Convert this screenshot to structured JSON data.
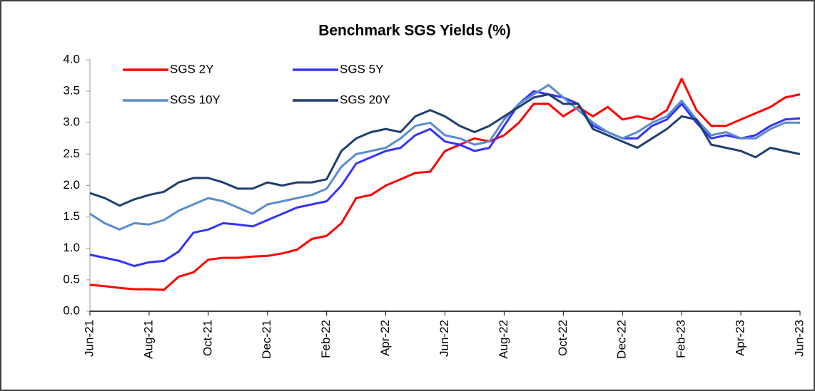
{
  "chart_data": {
    "type": "line",
    "title": "Benchmark SGS Yields (%)",
    "categories": [
      "Jun-21",
      null,
      null,
      null,
      "Aug-21",
      null,
      null,
      null,
      "Oct-21",
      null,
      null,
      null,
      "Dec-21",
      null,
      null,
      null,
      "Feb-22",
      null,
      null,
      null,
      "Apr-22",
      null,
      null,
      null,
      "Jun-22",
      null,
      null,
      null,
      "Aug-22",
      null,
      null,
      null,
      "Oct-22",
      null,
      null,
      null,
      "Dec-22",
      null,
      null,
      null,
      "Feb-23",
      null,
      null,
      null,
      "Apr-23",
      null,
      null,
      null,
      "Jun-23"
    ],
    "series": [
      {
        "name": "SGS 2Y",
        "color": "#ff0000",
        "values": [
          0.42,
          0.4,
          0.37,
          0.35,
          0.35,
          0.34,
          0.55,
          0.62,
          0.82,
          0.85,
          0.85,
          0.87,
          0.88,
          0.92,
          0.98,
          1.15,
          1.2,
          1.4,
          1.8,
          1.85,
          2.0,
          2.1,
          2.2,
          2.22,
          2.55,
          2.65,
          2.75,
          2.7,
          2.8,
          3.0,
          3.3,
          3.3,
          3.1,
          3.25,
          3.1,
          3.25,
          3.05,
          3.1,
          3.05,
          3.2,
          3.7,
          3.2,
          2.95,
          2.95,
          3.05,
          3.15,
          3.25,
          3.4,
          3.45
        ]
      },
      {
        "name": "SGS 5Y",
        "color": "#3333ff",
        "values": [
          0.9,
          0.85,
          0.8,
          0.72,
          0.78,
          0.8,
          0.95,
          1.25,
          1.3,
          1.4,
          1.38,
          1.35,
          1.45,
          1.55,
          1.65,
          1.7,
          1.75,
          2.0,
          2.35,
          2.45,
          2.55,
          2.6,
          2.8,
          2.9,
          2.7,
          2.65,
          2.55,
          2.6,
          2.95,
          3.3,
          3.5,
          3.45,
          3.4,
          3.3,
          2.95,
          2.85,
          2.75,
          2.75,
          2.95,
          3.05,
          3.3,
          3.0,
          2.75,
          2.8,
          2.75,
          2.8,
          2.95,
          3.05,
          3.07
        ]
      },
      {
        "name": "SGS 10Y",
        "color": "#5b8ccc",
        "values": [
          1.55,
          1.4,
          1.3,
          1.4,
          1.38,
          1.45,
          1.6,
          1.7,
          1.8,
          1.75,
          1.65,
          1.55,
          1.7,
          1.75,
          1.8,
          1.85,
          1.95,
          2.3,
          2.5,
          2.55,
          2.6,
          2.75,
          2.95,
          3.0,
          2.8,
          2.75,
          2.65,
          2.7,
          3.05,
          3.3,
          3.45,
          3.6,
          3.4,
          3.2,
          3.0,
          2.85,
          2.75,
          2.85,
          3.0,
          3.1,
          3.35,
          3.05,
          2.8,
          2.85,
          2.75,
          2.75,
          2.9,
          3.0,
          3.0
        ]
      },
      {
        "name": "SGS 20Y",
        "color": "#1f3f6e",
        "values": [
          1.88,
          1.8,
          1.68,
          1.78,
          1.85,
          1.9,
          2.05,
          2.12,
          2.12,
          2.05,
          1.95,
          1.95,
          2.05,
          2.0,
          2.05,
          2.05,
          2.1,
          2.55,
          2.75,
          2.85,
          2.9,
          2.85,
          3.1,
          3.2,
          3.1,
          2.95,
          2.85,
          2.95,
          3.1,
          3.25,
          3.4,
          3.45,
          3.3,
          3.3,
          2.9,
          2.8,
          2.7,
          2.6,
          2.75,
          2.9,
          3.1,
          3.05,
          2.65,
          2.6,
          2.55,
          2.45,
          2.6,
          2.55,
          2.5
        ]
      }
    ],
    "ylim": [
      0,
      4
    ],
    "yticks": [
      {
        "value": 0,
        "label": "0.0"
      },
      0.5,
      {
        "value": 1,
        "label": "1.0"
      },
      1.5,
      {
        "value": 2,
        "label": "2.0"
      },
      2.5,
      {
        "value": 3,
        "label": "3.0"
      },
      3.5,
      {
        "value": 4,
        "label": "4.0"
      }
    ],
    "grid": false,
    "legend": "upper left"
  }
}
